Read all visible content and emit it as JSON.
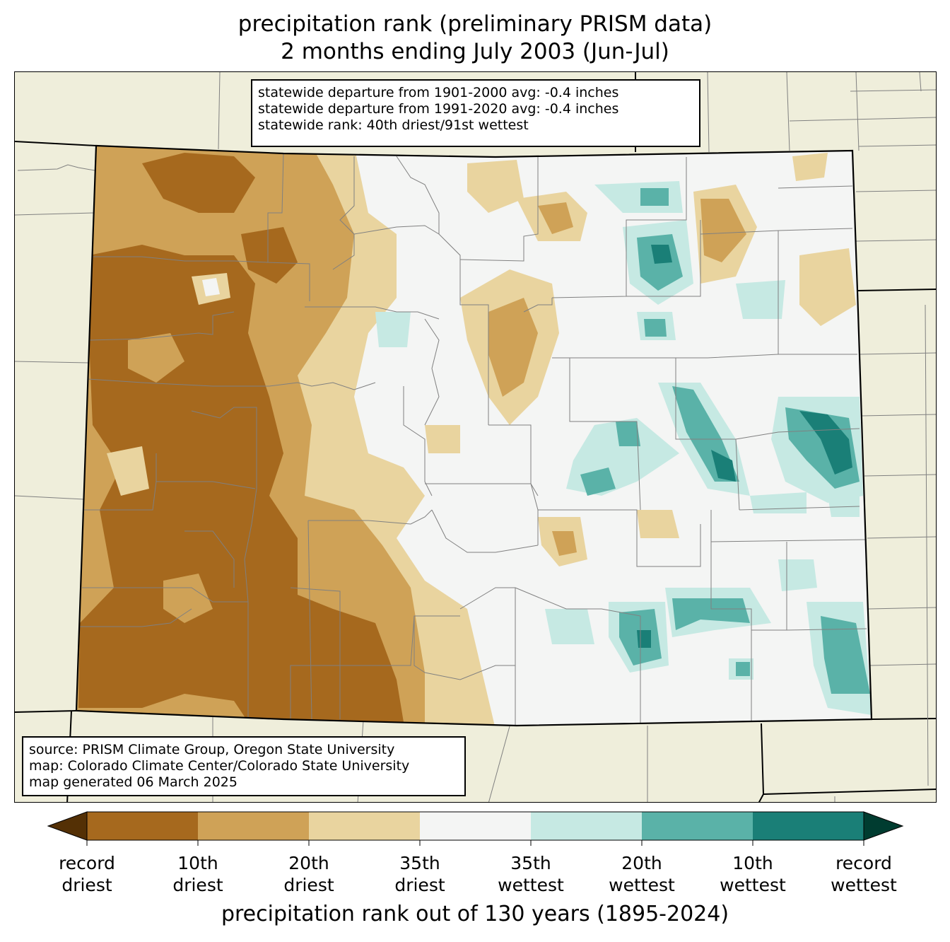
{
  "title": {
    "line1": "precipitation rank (preliminary PRISM data)",
    "line2": "2 months ending July 2003 (Jun-Jul)"
  },
  "stats_box": {
    "line1": "statewide departure from 1901-2000 avg: -0.4 inches",
    "line2": "statewide departure from 1991-2020 avg: -0.4 inches",
    "line3": "statewide rank: 40th driest/91st wettest"
  },
  "source_box": {
    "line1": "source: PRISM Climate Group, Oregon State University",
    "line2": "map: Colorado Climate Center/Colorado State University",
    "line3": "map generated 06 March 2025"
  },
  "colorbar": {
    "label": "precipitation rank out of 130 years (1895-2024)",
    "ticks": [
      {
        "line1": "record",
        "line2": "driest"
      },
      {
        "line1": "10th",
        "line2": "driest"
      },
      {
        "line1": "20th",
        "line2": "driest"
      },
      {
        "line1": "35th",
        "line2": "driest"
      },
      {
        "line1": "35th",
        "line2": "wettest"
      },
      {
        "line1": "20th",
        "line2": "wettest"
      },
      {
        "line1": "10th",
        "line2": "wettest"
      },
      {
        "line1": "record",
        "line2": "wettest"
      }
    ],
    "colors": [
      "#a6691e",
      "#cfa257",
      "#e9d49f",
      "#f4f5f4",
      "#c6e9e3",
      "#5ab2a8",
      "#1a7f77"
    ],
    "extend_low_color": "#543005",
    "extend_high_color": "#003c30"
  },
  "map_colors": {
    "background": "#efeedb",
    "state_fill": "#f4f5f4",
    "county_line": "#808080",
    "state_line": "#000000"
  }
}
